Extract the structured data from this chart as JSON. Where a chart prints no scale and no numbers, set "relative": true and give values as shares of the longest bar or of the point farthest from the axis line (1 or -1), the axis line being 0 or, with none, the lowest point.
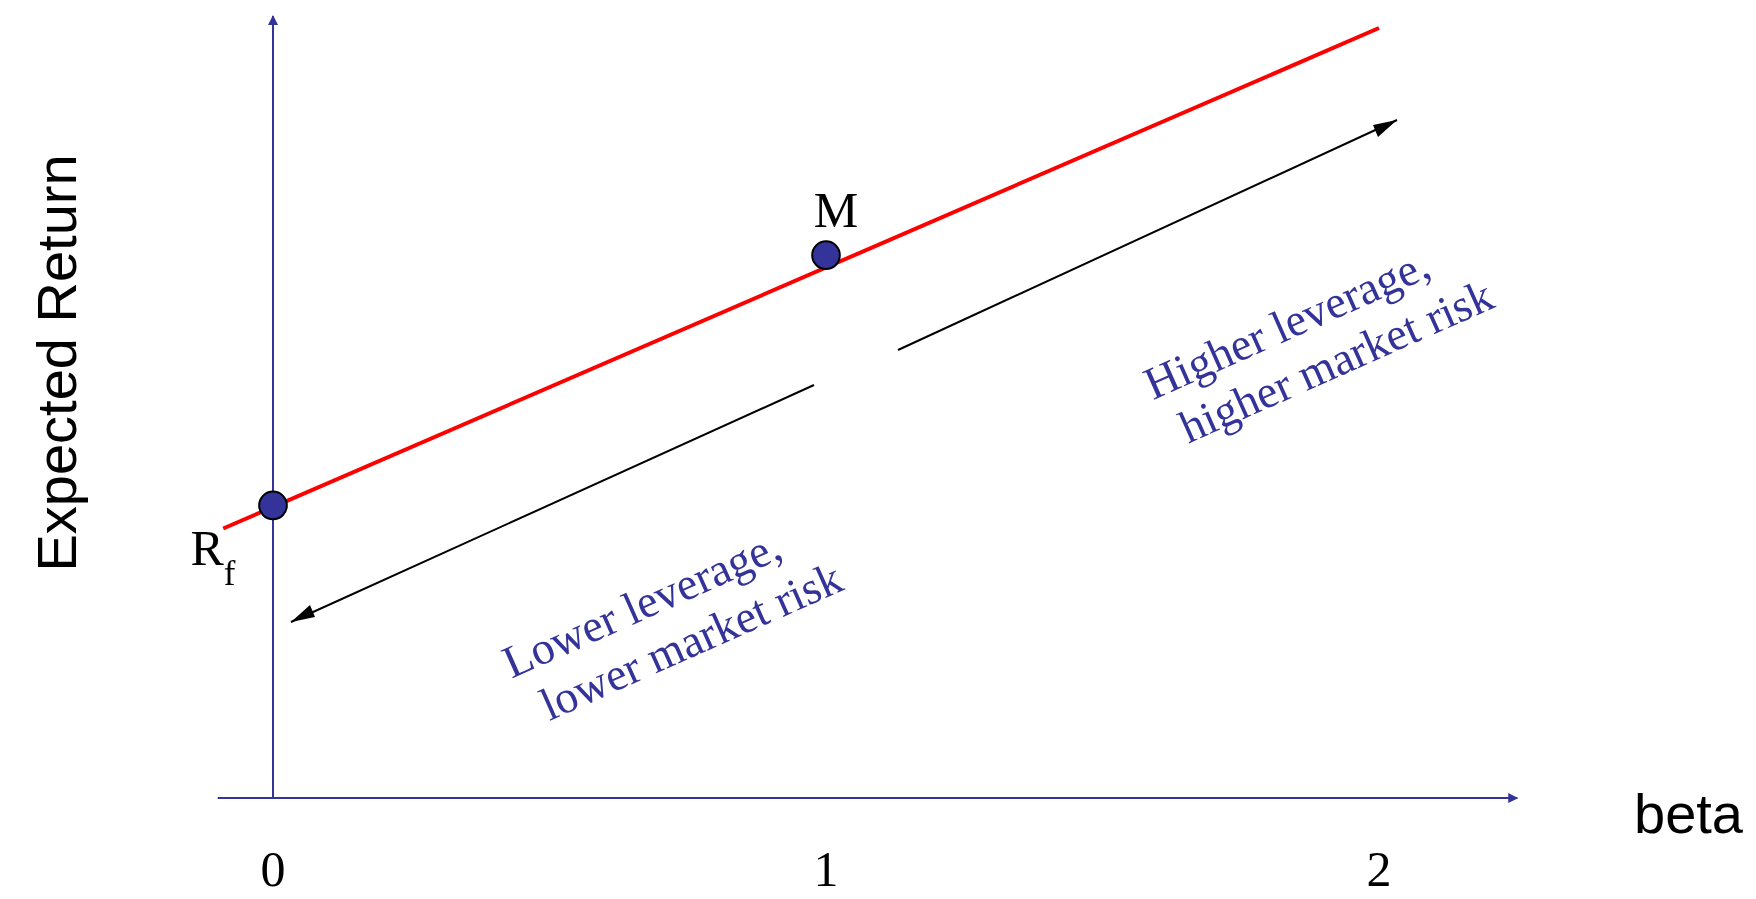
{
  "chart_data": {
    "type": "line",
    "xlabel": "beta",
    "ylabel": "Expected Return",
    "relative": true,
    "xlim": [
      -0.1,
      2.25
    ],
    "xticks": [
      0,
      1,
      2
    ],
    "series": [
      {
        "color": "#ff0000",
        "x": [
          -0.09,
          2
        ],
        "values": [
          0.35,
          1
        ]
      },
      {
        "type": "scatter",
        "color": "#333399",
        "x": [
          0,
          1
        ],
        "values": [
          0.38,
          0.705
        ],
        "marker": "circle"
      }
    ],
    "ref_lines": [
      {
        "axis": "x",
        "value": 0,
        "color": "#333399"
      }
    ],
    "annotations": [
      {
        "text": "R$_{f}$",
        "x": 0,
        "y": 0.38
      },
      {
        "text": "M",
        "x": 1,
        "y": 0.705
      },
      "Lower leverage,\nlower market risk",
      "Higher leverage,\nhigher market risk"
    ]
  }
}
